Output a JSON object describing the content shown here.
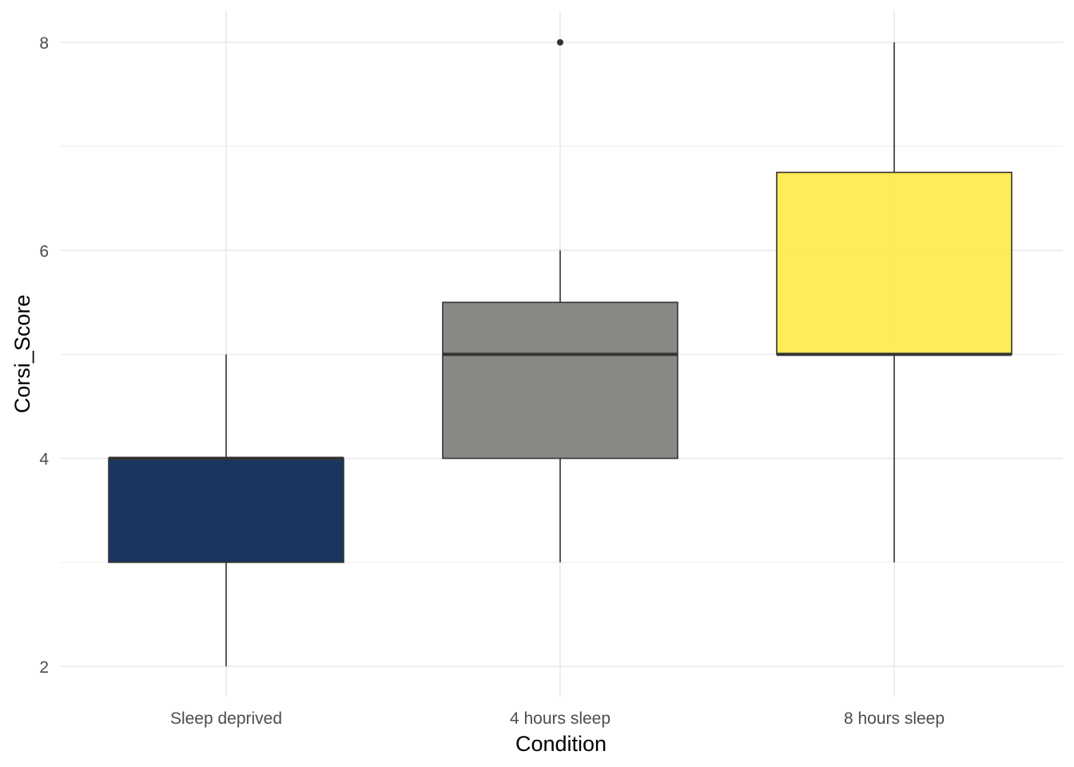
{
  "chart_data": {
    "type": "boxplot",
    "title": "",
    "xlabel": "Condition",
    "ylabel": "Corsi_Score",
    "ylim": [
      1.7,
      8.3
    ],
    "y_ticks": [
      2,
      4,
      6,
      8
    ],
    "grid": true,
    "legend": "none",
    "categories": [
      "Sleep deprived",
      "4 hours sleep",
      "8 hours sleep"
    ],
    "boxes": [
      {
        "category": "Sleep deprived",
        "min": 2,
        "q1": 3,
        "median": 4,
        "q3": 4,
        "max": 5,
        "outliers": [],
        "color": "#00204D"
      },
      {
        "category": "4 hours sleep",
        "min": 3,
        "q1": 4,
        "median": 5,
        "q3": 5.5,
        "max": 6,
        "outliers": [
          8
        ],
        "color": "#7C7B78"
      },
      {
        "category": "8 hours sleep",
        "min": 3,
        "q1": 5,
        "median": 5,
        "q3": 6.75,
        "max": 8,
        "outliers": [],
        "color": "#FFEA46"
      }
    ]
  }
}
